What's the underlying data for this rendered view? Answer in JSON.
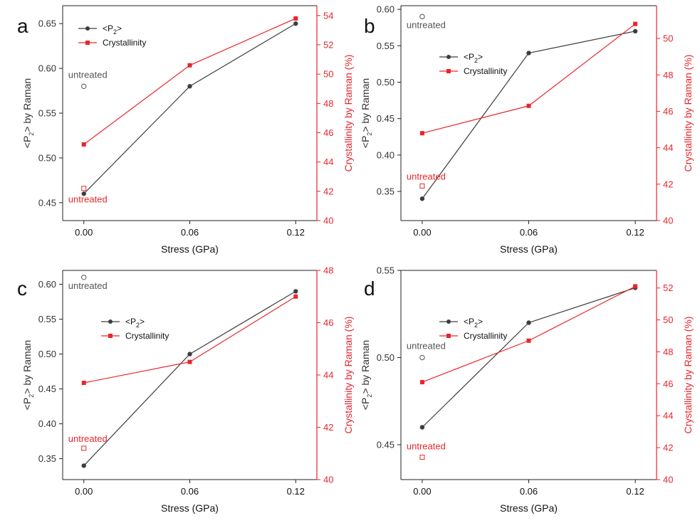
{
  "colors": {
    "p2": "#3d3d3d",
    "crystallinity": "#e8262b",
    "frame": "#222222",
    "untreated_p2": "#555555"
  },
  "chart_data": [
    {
      "panel": "a",
      "type": "line",
      "x": [
        0.0,
        0.06,
        0.12
      ],
      "xticks": [
        "0.00",
        "0.06",
        "0.12"
      ],
      "xlabel": "Stress (GPa)",
      "ylabel_left_base": "<P",
      "ylabel_left_sub": "2",
      "ylabel_left_tail": "> by Raman",
      "ylabel_right": "Crystallinity by Raman (%)",
      "left_ylim": [
        0.43,
        0.67
      ],
      "left_ticks": [
        "0.45",
        "0.50",
        "0.55",
        "0.60",
        "0.65"
      ],
      "right_ylim": [
        40,
        54.67
      ],
      "right_ticks": [
        "40",
        "42",
        "44",
        "46",
        "48",
        "50",
        "52",
        "54"
      ],
      "series": [
        {
          "name_base": "<P",
          "name_sub": "2",
          "name_tail": ">",
          "axis": "left",
          "values": [
            0.46,
            0.58,
            0.65
          ]
        },
        {
          "name_base": "Crystallinity",
          "name_sub": "",
          "name_tail": "",
          "axis": "right",
          "values": [
            45.2,
            50.6,
            53.8
          ]
        }
      ],
      "untreated": {
        "p2": 0.58,
        "crystallinity": 42.2,
        "p2_label": "untreated",
        "cryst_label": "untreated"
      },
      "legend_position": "top-left"
    },
    {
      "panel": "b",
      "type": "line",
      "x": [
        0.0,
        0.06,
        0.12
      ],
      "xticks": [
        "0.00",
        "0.06",
        "0.12"
      ],
      "xlabel": "Stress (GPa)",
      "ylabel_left_base": "<P",
      "ylabel_left_sub": "2",
      "ylabel_left_tail": "> by Raman",
      "ylabel_right": "Crystallinity by Raman (%)",
      "left_ylim": [
        0.31,
        0.605
      ],
      "left_ticks": [
        "0.35",
        "0.40",
        "0.45",
        "0.50",
        "0.55",
        "0.60"
      ],
      "right_ylim": [
        40,
        51.8
      ],
      "right_ticks": [
        "40",
        "42",
        "44",
        "46",
        "48",
        "50"
      ],
      "series": [
        {
          "name_base": "<P",
          "name_sub": "2",
          "name_tail": ">",
          "axis": "left",
          "values": [
            0.34,
            0.54,
            0.57
          ]
        },
        {
          "name_base": "Crystallinity",
          "name_sub": "",
          "name_tail": "",
          "axis": "right",
          "values": [
            44.8,
            46.3,
            50.8
          ]
        }
      ],
      "untreated": {
        "p2": 0.59,
        "crystallinity": 41.9,
        "p2_label": "untreated",
        "cryst_label": "untreated"
      },
      "legend_position": "top-center"
    },
    {
      "panel": "c",
      "type": "line",
      "x": [
        0.0,
        0.06,
        0.12
      ],
      "xticks": [
        "0.00",
        "0.06",
        "0.12"
      ],
      "xlabel": "Stress (GPa)",
      "ylabel_left_base": "<P",
      "ylabel_left_sub": "2",
      "ylabel_left_tail": "> by Raman",
      "ylabel_right": "Crystallinity by Raman (%)",
      "left_ylim": [
        0.32,
        0.62
      ],
      "left_ticks": [
        "0.35",
        "0.40",
        "0.45",
        "0.50",
        "0.55",
        "0.60"
      ],
      "right_ylim": [
        40,
        48
      ],
      "right_ticks": [
        "40",
        "42",
        "44",
        "46",
        "48"
      ],
      "series": [
        {
          "name_base": "<P",
          "name_sub": "2",
          "name_tail": ">",
          "axis": "left",
          "values": [
            0.34,
            0.5,
            0.59
          ]
        },
        {
          "name_base": "Crystallinity",
          "name_sub": "",
          "name_tail": "",
          "axis": "right",
          "values": [
            43.7,
            44.5,
            47.0
          ]
        }
      ],
      "untreated": {
        "p2": 0.61,
        "crystallinity": 41.2,
        "p2_label": "untreated",
        "cryst_label": "untreated"
      },
      "legend_position": "top-center"
    },
    {
      "panel": "d",
      "type": "line",
      "x": [
        0.0,
        0.06,
        0.12
      ],
      "xticks": [
        "0.00",
        "0.06",
        "0.12"
      ],
      "xlabel": "Stress (GPa)",
      "ylabel_left_base": "<P",
      "ylabel_left_sub": "2",
      "ylabel_left_tail": "> by Raman",
      "ylabel_right": "Crystallinity by Raman (%)",
      "left_ylim": [
        0.43,
        0.55
      ],
      "left_ticks": [
        "0.45",
        "0.50",
        "0.55"
      ],
      "right_ylim": [
        40,
        53.1
      ],
      "right_ticks": [
        "40",
        "42",
        "44",
        "46",
        "48",
        "50",
        "52"
      ],
      "series": [
        {
          "name_base": "<P",
          "name_sub": "2",
          "name_tail": ">",
          "axis": "left",
          "values": [
            0.46,
            0.52,
            0.54
          ]
        },
        {
          "name_base": "Crystallinity",
          "name_sub": "",
          "name_tail": "",
          "axis": "right",
          "values": [
            46.1,
            48.7,
            52.1
          ]
        }
      ],
      "untreated": {
        "p2": 0.5,
        "crystallinity": 41.4,
        "p2_label": "untreated",
        "cryst_label": "untreated"
      },
      "legend_position": "top-center"
    }
  ]
}
